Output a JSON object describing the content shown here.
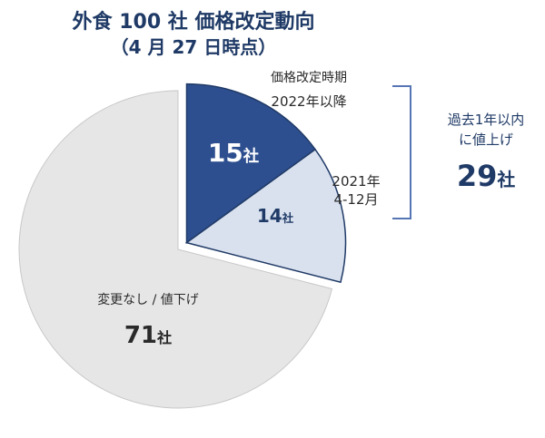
{
  "chart_data": {
    "type": "pie",
    "title": "外食 100 社  価格改定動向",
    "subtitle": "（4 月 27 日時点）",
    "unit": "社",
    "legend_header": "価格改定時期",
    "slices": [
      {
        "label": "2022年以降",
        "value": 15,
        "color": "#2e4f8f"
      },
      {
        "label": "2021年\n4-12月",
        "value": 14,
        "color": "#d9e1ef"
      },
      {
        "label": "変更なし / 値下げ",
        "value": 71,
        "color": "#e6e6e6"
      }
    ],
    "annotation": {
      "label": "過去1年以内\nに値上げ",
      "value": 29
    }
  }
}
